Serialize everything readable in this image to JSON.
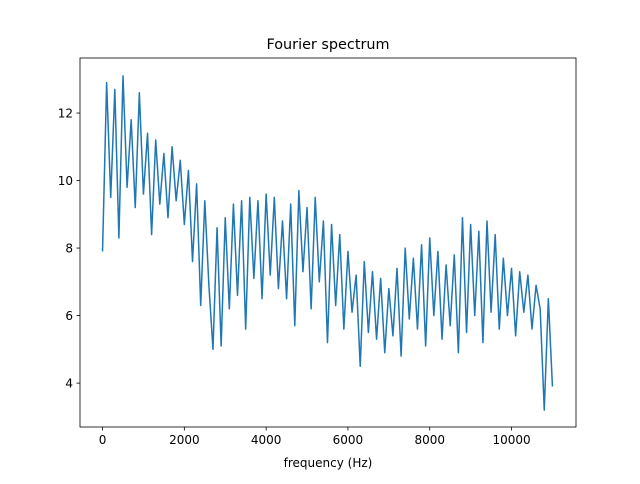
{
  "chart_data": {
    "type": "line",
    "title": "Fourier spectrum",
    "x_label": "frequency (Hz)",
    "color": "#1f77b4",
    "x": [
      0,
      100,
      200,
      300,
      400,
      500,
      600,
      700,
      800,
      900,
      1000,
      1100,
      1200,
      1300,
      1400,
      1500,
      1600,
      1700,
      1800,
      1900,
      2000,
      2100,
      2200,
      2300,
      2400,
      2500,
      2600,
      2700,
      2800,
      2900,
      3000,
      3100,
      3200,
      3300,
      3400,
      3500,
      3600,
      3700,
      3800,
      3900,
      4000,
      4100,
      4200,
      4300,
      4400,
      4500,
      4600,
      4700,
      4800,
      4900,
      5000,
      5100,
      5200,
      5300,
      5400,
      5500,
      5600,
      5700,
      5800,
      5900,
      6000,
      6100,
      6200,
      6300,
      6400,
      6500,
      6600,
      6700,
      6800,
      6900,
      7000,
      7100,
      7200,
      7300,
      7400,
      7500,
      7600,
      7700,
      7800,
      7900,
      8000,
      8100,
      8200,
      8300,
      8400,
      8500,
      8600,
      8700,
      8800,
      8900,
      9000,
      9100,
      9200,
      9300,
      9400,
      9500,
      9600,
      9700,
      9800,
      9900,
      10000,
      10100,
      10200,
      10300,
      10400,
      10500,
      10600,
      10700,
      10800,
      10900,
      11000
    ],
    "values": [
      7.9,
      12.9,
      9.5,
      12.7,
      8.3,
      13.1,
      9.8,
      11.8,
      9.2,
      12.6,
      9.6,
      11.4,
      8.4,
      11.2,
      9.3,
      10.8,
      8.9,
      11.0,
      9.4,
      10.6,
      8.7,
      10.3,
      7.6,
      9.9,
      6.3,
      9.4,
      6.9,
      5.0,
      8.6,
      5.1,
      8.9,
      6.2,
      9.3,
      6.6,
      9.4,
      5.6,
      9.5,
      7.1,
      9.4,
      6.5,
      9.6,
      7.2,
      9.5,
      6.8,
      8.8,
      6.5,
      9.3,
      5.7,
      9.7,
      7.3,
      9.2,
      6.2,
      9.5,
      7.0,
      8.8,
      5.2,
      8.7,
      6.3,
      8.4,
      5.6,
      7.9,
      6.1,
      7.2,
      4.5,
      7.6,
      5.5,
      7.3,
      5.3,
      7.1,
      4.9,
      6.8,
      5.4,
      7.4,
      4.8,
      8.0,
      5.9,
      7.7,
      5.6,
      8.1,
      5.1,
      8.3,
      6.0,
      7.9,
      5.3,
      7.5,
      5.7,
      7.8,
      4.9,
      8.9,
      5.5,
      8.7,
      6.0,
      8.5,
      5.2,
      8.8,
      6.1,
      8.4,
      5.6,
      7.7,
      6.0,
      7.4,
      5.4,
      7.3,
      6.1,
      7.2,
      5.6,
      6.9,
      6.2,
      3.2,
      6.5,
      3.9
    ],
    "xlim": [
      -551,
      11576
    ],
    "ylim": [
      2.7,
      13.63
    ],
    "xticks": [
      0,
      2000,
      4000,
      6000,
      8000,
      10000
    ],
    "yticks": [
      4,
      6,
      8,
      10,
      12
    ]
  }
}
